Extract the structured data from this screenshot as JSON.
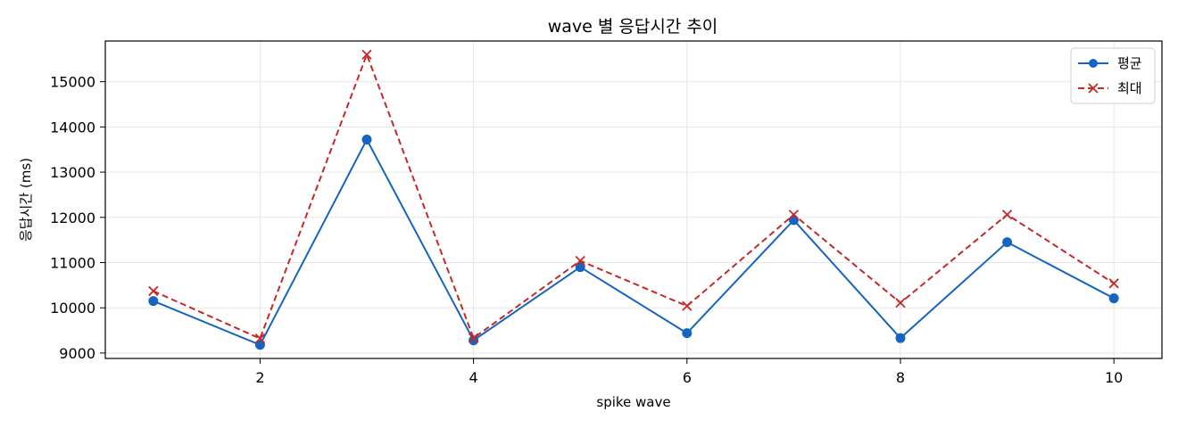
{
  "chart_data": {
    "type": "line",
    "title": "wave 별 응답시간 추이",
    "xlabel": "spike wave",
    "ylabel": "응답시간 (ms)",
    "x": [
      1,
      2,
      3,
      4,
      5,
      6,
      7,
      8,
      9,
      10
    ],
    "xlim": [
      0.55,
      10.45
    ],
    "ylim": [
      8880,
      15900
    ],
    "xticks": [
      2,
      4,
      6,
      8,
      10
    ],
    "yticks": [
      9000,
      10000,
      11000,
      12000,
      13000,
      14000,
      15000
    ],
    "grid": true,
    "legend_position": "top-right",
    "series": [
      {
        "name": "평균",
        "color": "#1565c0",
        "style": "solid",
        "marker": "circle",
        "values": [
          10150,
          9180,
          13720,
          9280,
          10900,
          9440,
          11940,
          9330,
          11450,
          10210
        ]
      },
      {
        "name": "최대",
        "color": "#c62828",
        "style": "dashed",
        "marker": "x",
        "values": [
          10370,
          9320,
          15600,
          9330,
          11040,
          10040,
          12060,
          10110,
          12060,
          10540
        ]
      }
    ]
  }
}
